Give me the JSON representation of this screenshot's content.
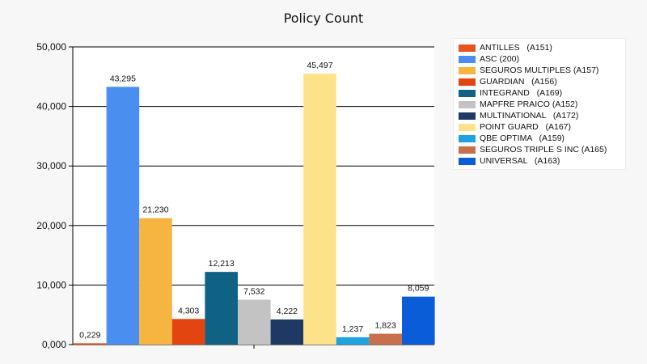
{
  "chart_data": {
    "type": "bar",
    "title": "Policy Count",
    "xlabel": "",
    "ylabel": "",
    "ylim": [
      0,
      50000
    ],
    "yticks": [
      0,
      10000,
      20000,
      30000,
      40000,
      50000
    ],
    "ytick_labels": [
      "0,000",
      "10,000",
      "20,000",
      "30,000",
      "40,000",
      "50,000"
    ],
    "grid": true,
    "legend_position": "right",
    "series": [
      {
        "name": "ANTILLES   (A151)",
        "value": 229,
        "label": "0,229",
        "color": "#e8541e"
      },
      {
        "name": "ASC (200)",
        "value": 43295,
        "label": "43,295",
        "color": "#4a8ef0"
      },
      {
        "name": "SEGUROS MULTIPLES (A157)",
        "value": 21230,
        "label": "21,230",
        "color": "#f6b440"
      },
      {
        "name": "GUARDIAN   (A156)",
        "value": 4303,
        "label": "4,303",
        "color": "#e2450f"
      },
      {
        "name": "INTEGRAND   (A169)",
        "value": 12213,
        "label": "12,213",
        "color": "#0f6284"
      },
      {
        "name": "MAPFRE PRAICO (A152)",
        "value": 7532,
        "label": "7,532",
        "color": "#c3c3c3"
      },
      {
        "name": "MULTINATIONAL   (A172)",
        "value": 4222,
        "label": "4,222",
        "color": "#1f3864"
      },
      {
        "name": "POINT GUARD   (A167)",
        "value": 45497,
        "label": "45,497",
        "color": "#fde28a"
      },
      {
        "name": "QBE OPTIMA   (A159)",
        "value": 1237,
        "label": "1,237",
        "color": "#1ea2e0"
      },
      {
        "name": "SEGUROS TRIPLE S INC (A165)",
        "value": 1823,
        "label": "1,823",
        "color": "#c8704e"
      },
      {
        "name": "UNIVERSAL   (A163)",
        "value": 8059,
        "label": "8,059",
        "color": "#0b5cd8"
      }
    ]
  }
}
